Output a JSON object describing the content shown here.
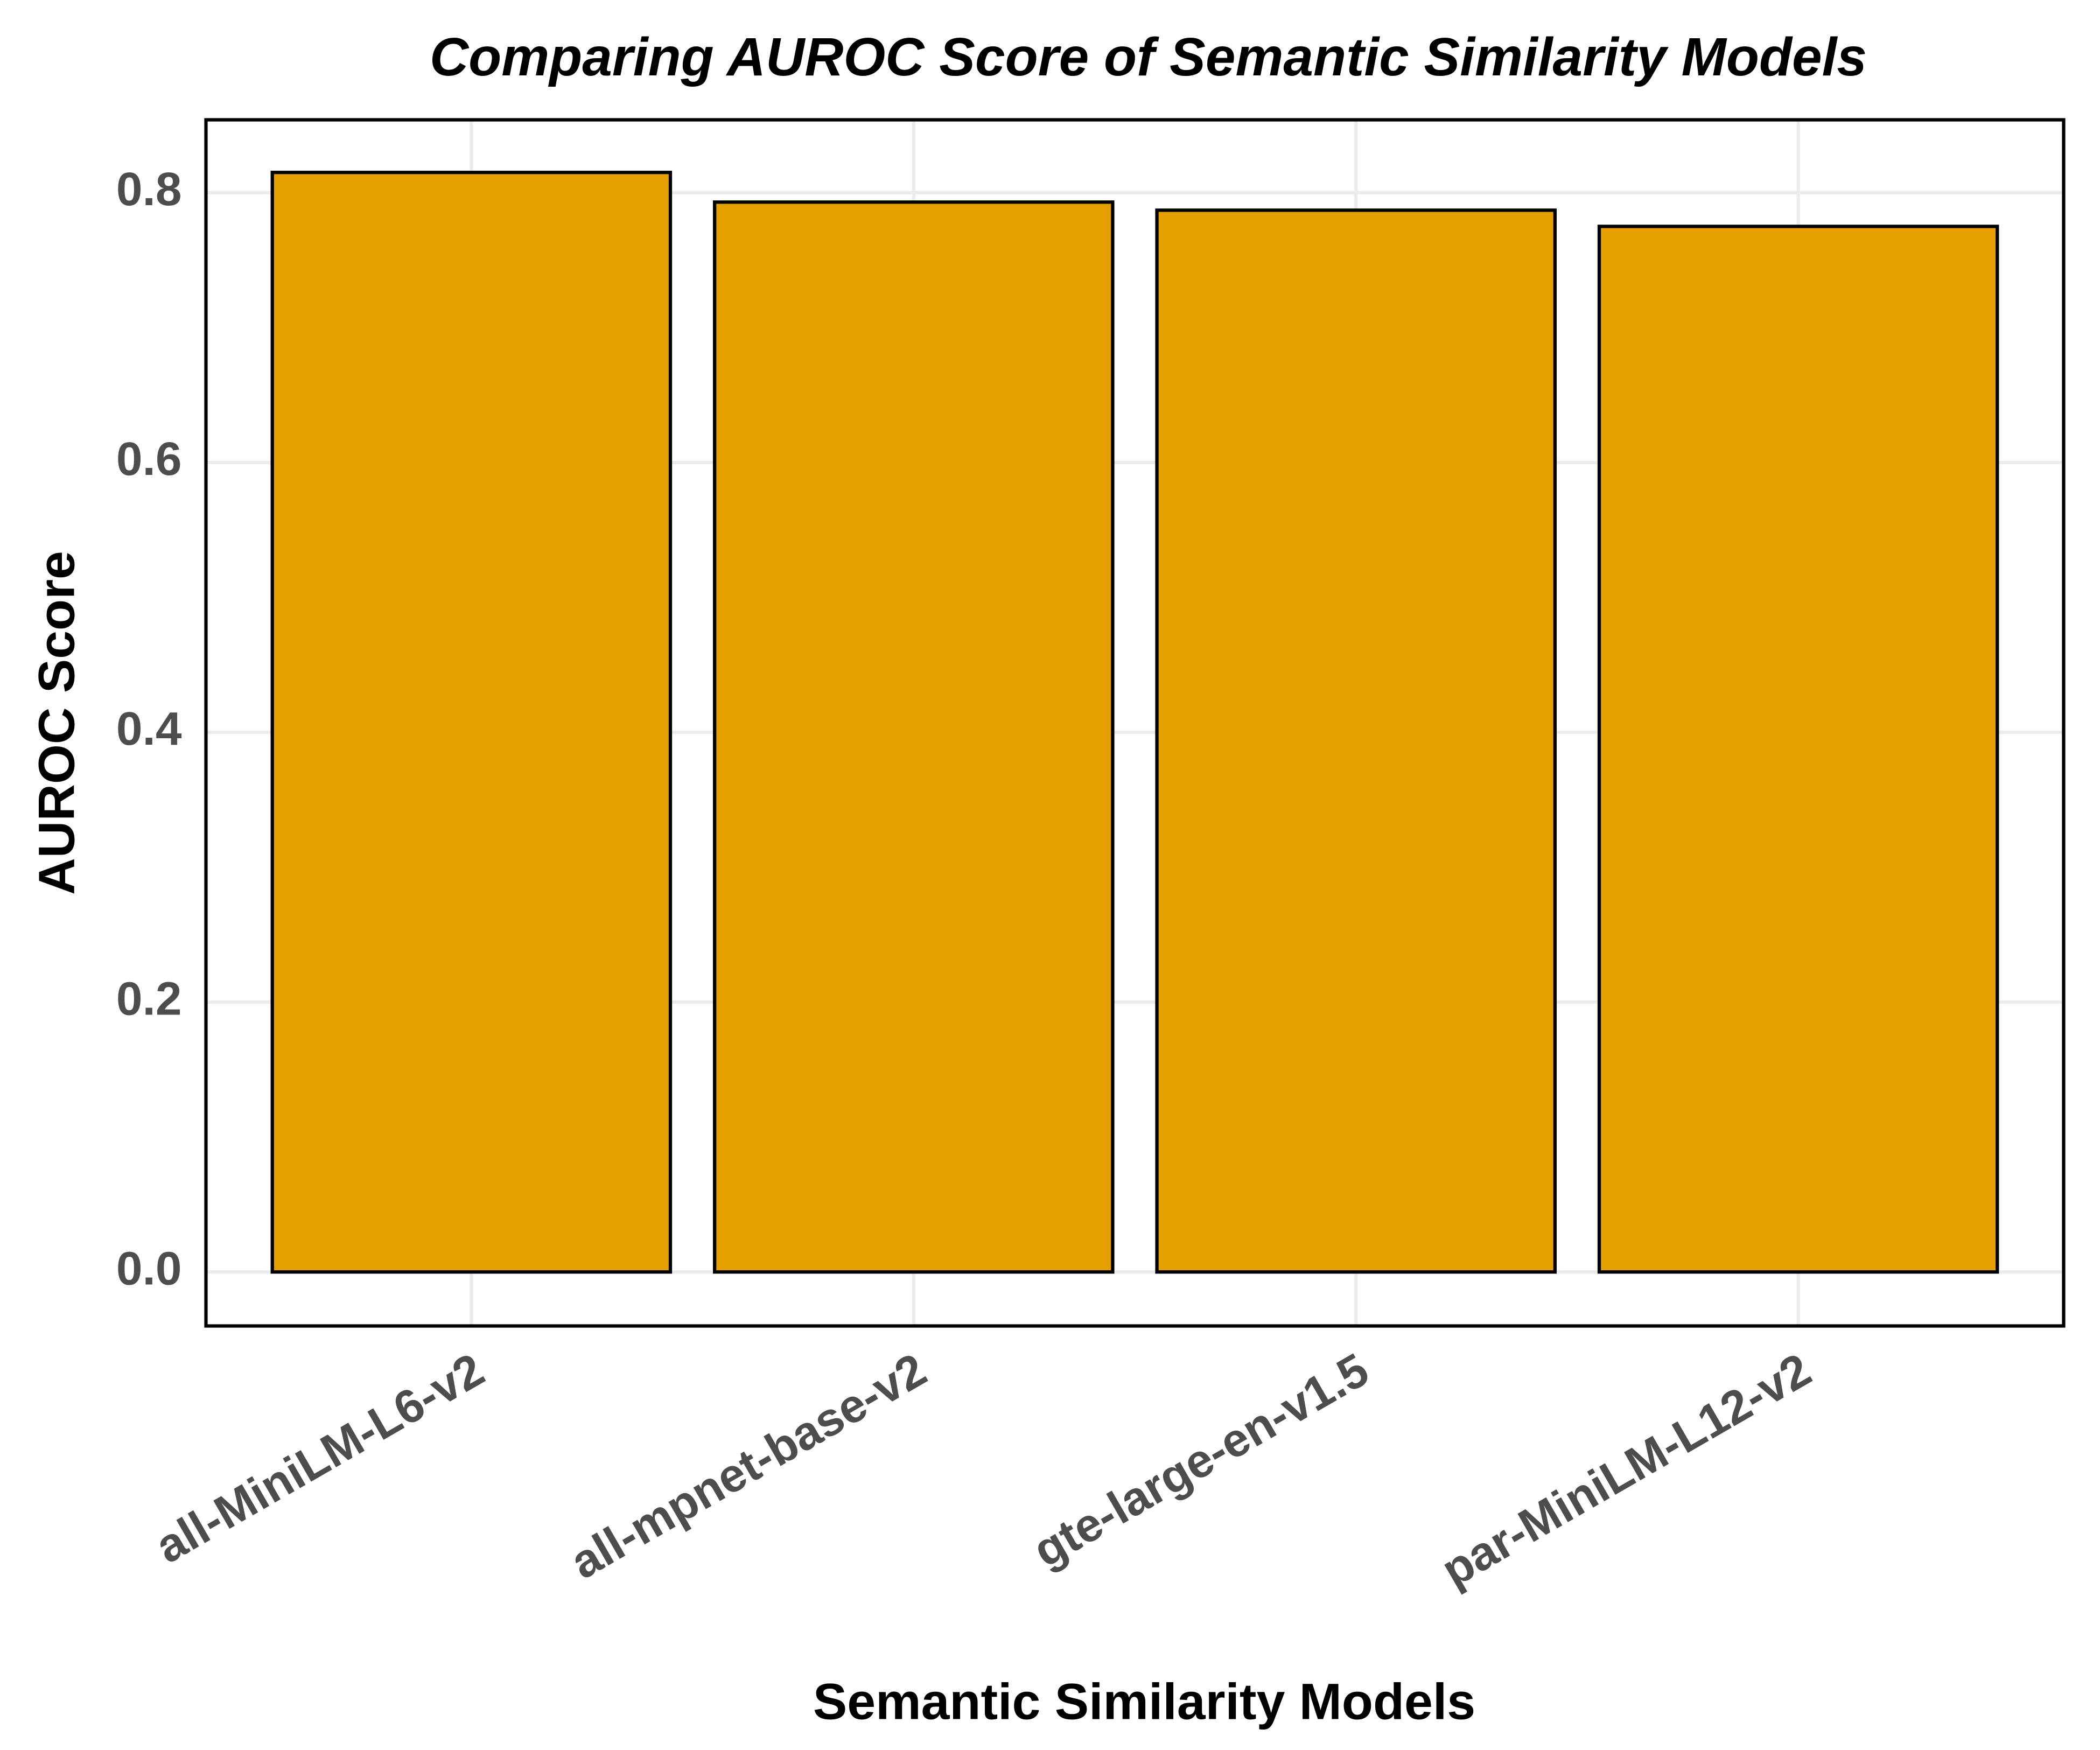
{
  "chart_data": {
    "type": "bar",
    "title": "Comparing AUROC Score of Semantic Similarity Models",
    "x_label": "Semantic Similarity Models",
    "y_label": "AUROC Score",
    "categories": [
      "all-MiniLM-L6-v2",
      "all-mpnet-base-v2",
      "gte-large-en-v1.5",
      "par-MiniLM-L12-v2"
    ],
    "values": [
      0.815,
      0.793,
      0.787,
      0.775
    ],
    "color": "#e69f00",
    "ylim": [
      -0.04,
      0.854
    ],
    "yticks": [
      {
        "value": 0,
        "label": "0.0"
      },
      0.2,
      0.4,
      0.6,
      0.8
    ],
    "grid": true
  }
}
